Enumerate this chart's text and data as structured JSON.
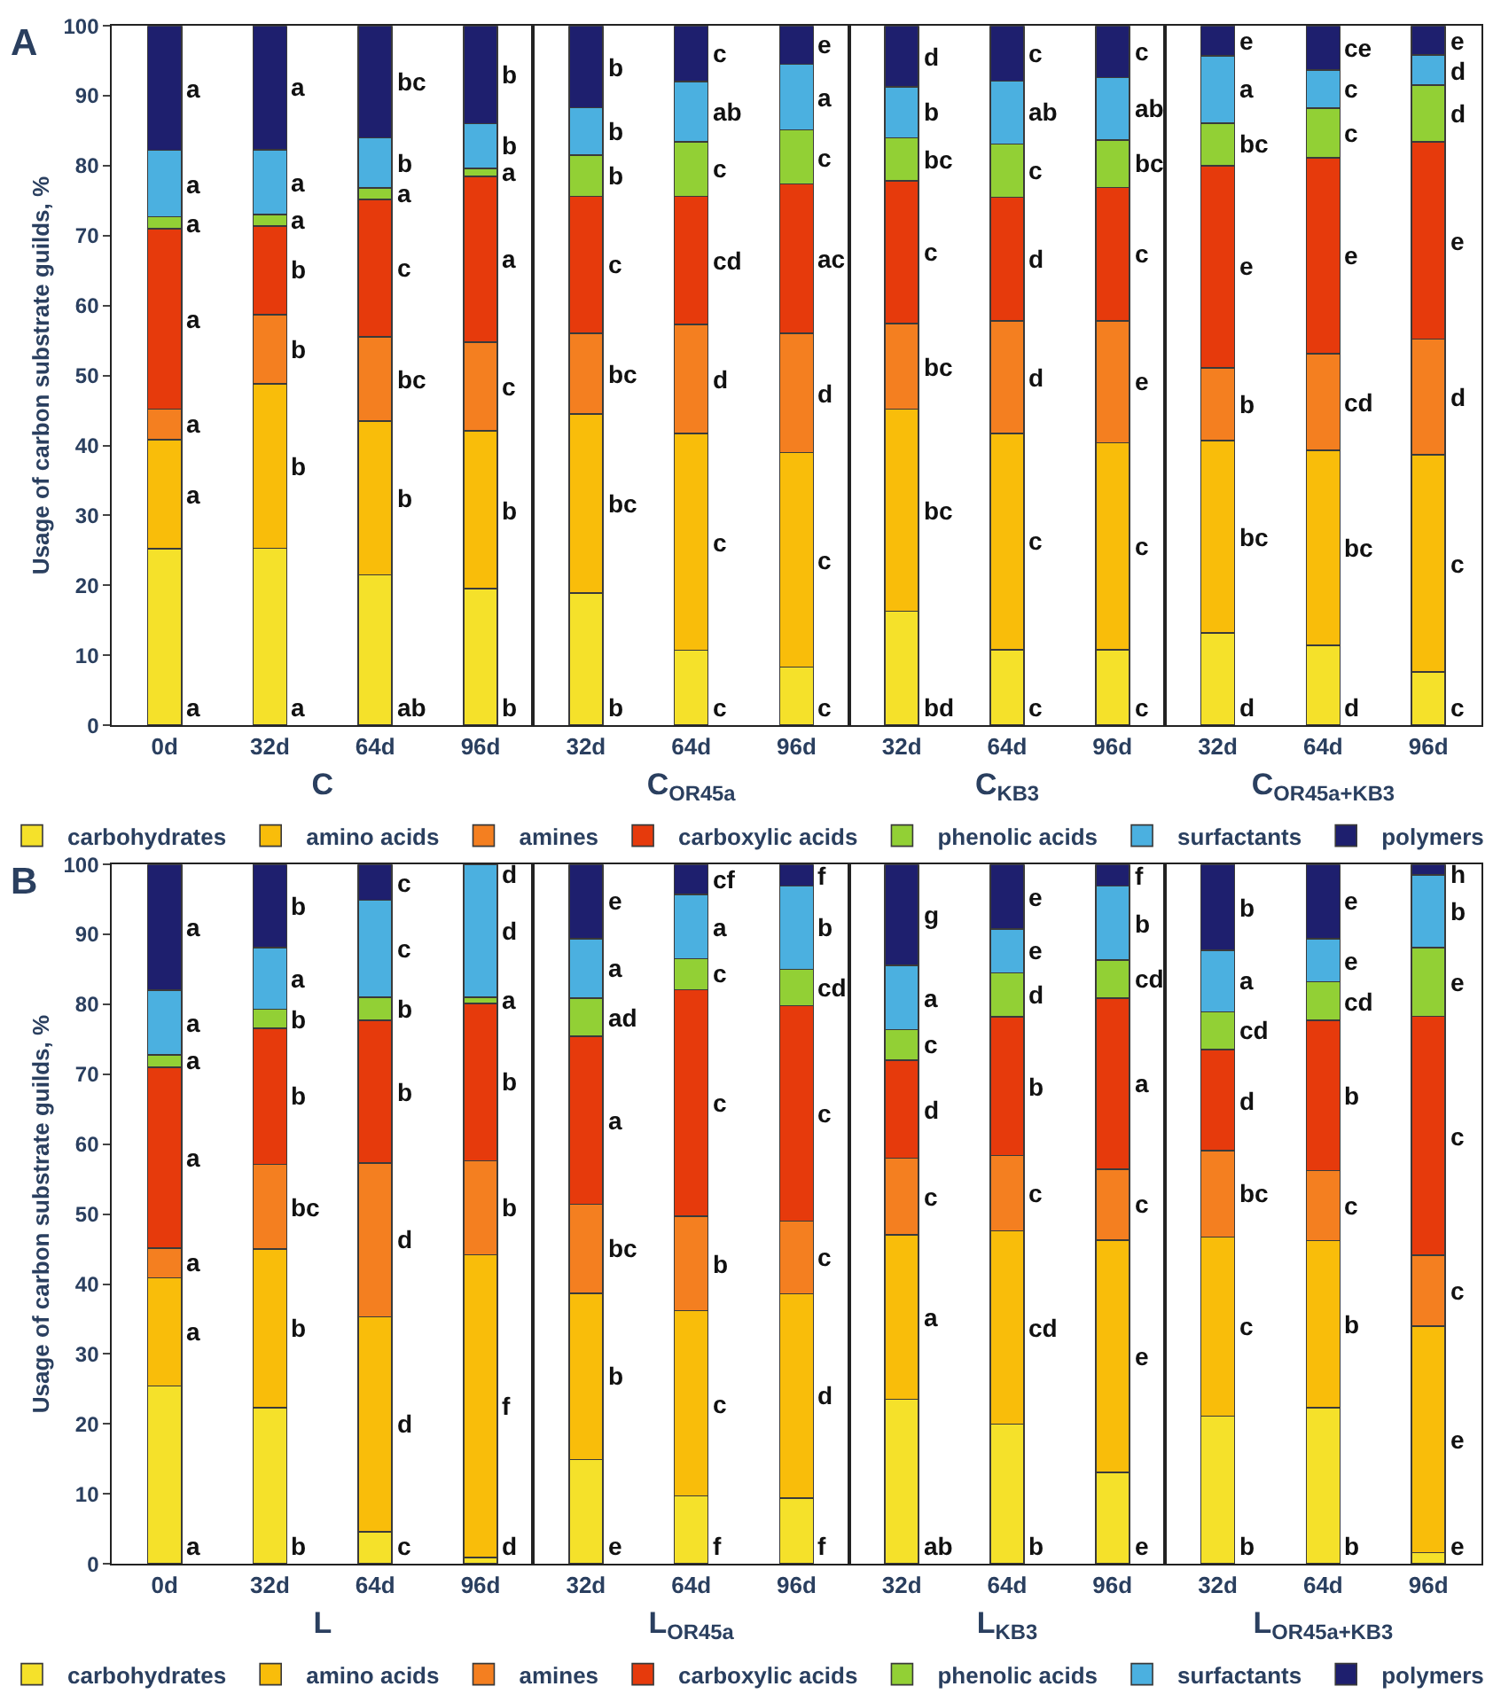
{
  "chart_data": [
    {
      "type": "bar",
      "stacked": true,
      "title": "A",
      "ylabel": "Usage of carbon substrate guilds, %",
      "xlabel": "C",
      "legend": "bottom",
      "ylim": [
        0,
        100
      ],
      "yticks": [
        0,
        10,
        20,
        30,
        40,
        50,
        60,
        70,
        80,
        90,
        100
      ],
      "categories": [
        "0d",
        "32d",
        "64d",
        "96d"
      ],
      "series": [
        {
          "name": "carbohydrates",
          "color": "#f5e12a",
          "values": [
            25.2,
            25.3,
            21.5,
            19.5
          ],
          "value_labels": [
            "a",
            "a",
            "ab",
            "b"
          ]
        },
        {
          "name": "amino acids",
          "color": "#f9bd0a",
          "values": [
            15.6,
            23.5,
            22.0,
            22.6
          ],
          "value_labels": [
            "a",
            "b",
            "b",
            "b"
          ]
        },
        {
          "name": "amines",
          "color": "#f47f20",
          "values": [
            4.4,
            9.9,
            12.0,
            12.7
          ],
          "value_labels": [
            "a",
            "b",
            "bc",
            "c"
          ]
        },
        {
          "name": "carboxylic acids",
          "color": "#e63a0c",
          "values": [
            25.8,
            12.7,
            19.7,
            23.7
          ],
          "value_labels": [
            "a",
            "b",
            "c",
            "a"
          ]
        },
        {
          "name": "phenolic acids",
          "color": "#92d035",
          "values": [
            1.7,
            1.6,
            1.6,
            1.1
          ],
          "value_labels": [
            "a",
            "a",
            "a",
            "a"
          ]
        },
        {
          "name": "surfactants",
          "color": "#4bb0e0",
          "values": [
            9.5,
            9.3,
            7.2,
            6.4
          ],
          "value_labels": [
            "a",
            "a",
            "b",
            "b"
          ]
        },
        {
          "name": "polymers",
          "color": "#1e1f6e",
          "values": [
            17.8,
            17.7,
            16.0,
            14.0
          ],
          "value_labels": [
            "a",
            "a",
            "bc",
            "b"
          ]
        }
      ]
    },
    {
      "type": "bar",
      "stacked": true,
      "xlabel": "C$_{OR45a}$",
      "tick_labels": "x",
      "ylim": [
        0,
        100
      ],
      "yticks": [
        0,
        10,
        20,
        30,
        40,
        50,
        60,
        70,
        80,
        90,
        100
      ],
      "categories": [
        "32d",
        "64d",
        "96d"
      ],
      "series": [
        {
          "color": "#f5e12a",
          "values": [
            18.9,
            10.7,
            8.3
          ],
          "value_labels": [
            "b",
            "c",
            "c"
          ]
        },
        {
          "color": "#f9bd0a",
          "values": [
            25.6,
            31.0,
            30.7
          ],
          "value_labels": [
            "bc",
            "c",
            "c"
          ]
        },
        {
          "color": "#f47f20",
          "values": [
            11.5,
            15.6,
            17.0
          ],
          "value_labels": [
            "bc",
            "d",
            "d"
          ]
        },
        {
          "color": "#e63a0c",
          "values": [
            19.6,
            18.3,
            21.4
          ],
          "value_labels": [
            "c",
            "cd",
            "ac"
          ]
        },
        {
          "color": "#92d035",
          "values": [
            5.9,
            7.8,
            7.7
          ],
          "value_labels": [
            "b",
            "c",
            "c"
          ]
        },
        {
          "color": "#4bb0e0",
          "values": [
            6.8,
            8.6,
            9.4
          ],
          "value_labels": [
            "b",
            "ab",
            "a"
          ]
        },
        {
          "color": "#1e1f6e",
          "values": [
            11.7,
            8.0,
            5.5
          ],
          "value_labels": [
            "b",
            "c",
            "e"
          ]
        }
      ]
    },
    {
      "type": "bar",
      "stacked": true,
      "xlabel": "C$_{KB3}$",
      "tick_labels": "x",
      "ylim": [
        0,
        100
      ],
      "yticks": [
        0,
        10,
        20,
        30,
        40,
        50,
        60,
        70,
        80,
        90,
        100
      ],
      "categories": [
        "32d",
        "64d",
        "96d"
      ],
      "series": [
        {
          "color": "#f5e12a",
          "values": [
            16.3,
            10.8,
            10.8
          ],
          "value_labels": [
            "bd",
            "c",
            "c"
          ]
        },
        {
          "color": "#f9bd0a",
          "values": [
            28.9,
            30.9,
            29.6
          ],
          "value_labels": [
            "bc",
            "c",
            "c"
          ]
        },
        {
          "color": "#f47f20",
          "values": [
            12.2,
            16.1,
            17.4
          ],
          "value_labels": [
            "bc",
            "d",
            "e"
          ]
        },
        {
          "color": "#e63a0c",
          "values": [
            20.4,
            17.7,
            19.1
          ],
          "value_labels": [
            "c",
            "d",
            "c"
          ]
        },
        {
          "color": "#92d035",
          "values": [
            6.2,
            7.6,
            6.8
          ],
          "value_labels": [
            "bc",
            "c",
            "bc"
          ]
        },
        {
          "color": "#4bb0e0",
          "values": [
            7.3,
            9.0,
            8.9
          ],
          "value_labels": [
            "b",
            "ab",
            "ab"
          ]
        },
        {
          "color": "#1e1f6e",
          "values": [
            8.7,
            7.9,
            7.4
          ],
          "value_labels": [
            "d",
            "c",
            "c"
          ]
        }
      ]
    },
    {
      "type": "bar",
      "stacked": true,
      "xlabel": "C$_{OR45a+KB3}$",
      "tick_labels": "x",
      "ylim": [
        0,
        100
      ],
      "yticks": [
        0,
        10,
        20,
        30,
        40,
        50,
        60,
        70,
        80,
        90,
        100
      ],
      "categories": [
        "32d",
        "64d",
        "96d"
      ],
      "series": [
        {
          "color": "#f5e12a",
          "values": [
            13.2,
            11.4,
            7.6
          ],
          "value_labels": [
            "d",
            "d",
            "c"
          ]
        },
        {
          "color": "#f9bd0a",
          "values": [
            27.5,
            27.9,
            31.1
          ],
          "value_labels": [
            "bc",
            "bc",
            "c"
          ]
        },
        {
          "color": "#f47f20",
          "values": [
            10.4,
            13.8,
            16.5
          ],
          "value_labels": [
            "b",
            "cd",
            "d"
          ]
        },
        {
          "color": "#e63a0c",
          "values": [
            28.9,
            28.0,
            28.2
          ],
          "value_labels": [
            "e",
            "e",
            "e"
          ]
        },
        {
          "color": "#92d035",
          "values": [
            6.1,
            7.1,
            8.1
          ],
          "value_labels": [
            "bc",
            "c",
            "d"
          ]
        },
        {
          "color": "#4bb0e0",
          "values": [
            9.6,
            5.5,
            4.3
          ],
          "value_labels": [
            "a",
            "c",
            "d"
          ]
        },
        {
          "color": "#1e1f6e",
          "values": [
            4.3,
            6.3,
            4.2
          ],
          "value_labels": [
            "e",
            "ce",
            "e"
          ]
        }
      ]
    },
    {
      "type": "bar",
      "stacked": true,
      "title": "B",
      "ylabel": "Usage of carbon substrate guilds, %",
      "xlabel": "L",
      "legend": "bottom",
      "ylim": [
        0,
        100
      ],
      "yticks": [
        0,
        10,
        20,
        30,
        40,
        50,
        60,
        70,
        80,
        90,
        100
      ],
      "categories": [
        "0d",
        "32d",
        "64d",
        "96d"
      ],
      "series": [
        {
          "name": "carbohydrates",
          "color": "#f5e12a",
          "values": [
            25.4,
            22.3,
            4.6,
            0.9
          ],
          "value_labels": [
            "a",
            "b",
            "c",
            "d"
          ]
        },
        {
          "name": "amino acids",
          "color": "#f9bd0a",
          "values": [
            15.5,
            22.7,
            30.7,
            43.3
          ],
          "value_labels": [
            "a",
            "b",
            "d",
            "f"
          ]
        },
        {
          "name": "amines",
          "color": "#f47f20",
          "values": [
            4.2,
            12.1,
            22.0,
            13.4
          ],
          "value_labels": [
            "a",
            "bc",
            "d",
            "b"
          ]
        },
        {
          "name": "carboxylic acids",
          "color": "#e63a0c",
          "values": [
            25.9,
            19.5,
            20.4,
            22.5
          ],
          "value_labels": [
            "a",
            "b",
            "b",
            "b"
          ]
        },
        {
          "name": "phenolic acids",
          "color": "#92d035",
          "values": [
            1.8,
            2.7,
            3.3,
            0.9
          ],
          "value_labels": [
            "a",
            "b",
            "b",
            "a"
          ]
        },
        {
          "name": "surfactants",
          "color": "#4bb0e0",
          "values": [
            9.2,
            8.8,
            13.9,
            19.0
          ],
          "value_labels": [
            "a",
            "a",
            "c",
            "d"
          ]
        },
        {
          "name": "polymers",
          "color": "#1e1f6e",
          "values": [
            18.0,
            11.9,
            5.1,
            0.3
          ],
          "value_labels": [
            "a",
            "b",
            "c",
            "d"
          ]
        }
      ]
    },
    {
      "type": "bar",
      "stacked": true,
      "xlabel": "L$_{OR45a}$",
      "tick_labels": "x",
      "ylim": [
        0,
        100
      ],
      "yticks": [
        0,
        10,
        20,
        30,
        40,
        50,
        60,
        70,
        80,
        90,
        100
      ],
      "categories": [
        "32d",
        "64d",
        "96d"
      ],
      "series": [
        {
          "color": "#f5e12a",
          "values": [
            14.9,
            9.7,
            9.4
          ],
          "value_labels": [
            "e",
            "f",
            "f"
          ]
        },
        {
          "color": "#f9bd0a",
          "values": [
            23.8,
            26.5,
            29.2
          ],
          "value_labels": [
            "b",
            "c",
            "d"
          ]
        },
        {
          "color": "#f47f20",
          "values": [
            12.7,
            13.5,
            10.4
          ],
          "value_labels": [
            "bc",
            "b",
            "c"
          ]
        },
        {
          "color": "#e63a0c",
          "values": [
            24.0,
            32.4,
            30.8
          ],
          "value_labels": [
            "a",
            "c",
            "c"
          ]
        },
        {
          "color": "#92d035",
          "values": [
            5.5,
            4.4,
            5.2
          ],
          "value_labels": [
            "ad",
            "c",
            "cd"
          ]
        },
        {
          "color": "#4bb0e0",
          "values": [
            8.5,
            9.2,
            11.9
          ],
          "value_labels": [
            "a",
            "a",
            "b"
          ]
        },
        {
          "color": "#1e1f6e",
          "values": [
            10.6,
            4.3,
            3.1
          ],
          "value_labels": [
            "e",
            "cf",
            "f"
          ]
        }
      ]
    },
    {
      "type": "bar",
      "stacked": true,
      "xlabel": "L$_{KB3}$",
      "tick_labels": "x",
      "ylim": [
        0,
        100
      ],
      "yticks": [
        0,
        10,
        20,
        30,
        40,
        50,
        60,
        70,
        80,
        90,
        100
      ],
      "categories": [
        "32d",
        "64d",
        "96d"
      ],
      "series": [
        {
          "color": "#f5e12a",
          "values": [
            23.5,
            20.0,
            13.1
          ],
          "value_labels": [
            "ab",
            "b",
            "e"
          ]
        },
        {
          "color": "#f9bd0a",
          "values": [
            23.5,
            27.6,
            33.2
          ],
          "value_labels": [
            "a",
            "cd",
            "e"
          ]
        },
        {
          "color": "#f47f20",
          "values": [
            11.0,
            10.8,
            10.1
          ],
          "value_labels": [
            "c",
            "c",
            "c"
          ]
        },
        {
          "color": "#e63a0c",
          "values": [
            14.0,
            19.8,
            24.5
          ],
          "value_labels": [
            "d",
            "b",
            "a"
          ]
        },
        {
          "color": "#92d035",
          "values": [
            4.4,
            6.3,
            5.4
          ],
          "value_labels": [
            "c",
            "d",
            "cd"
          ]
        },
        {
          "color": "#4bb0e0",
          "values": [
            9.2,
            6.3,
            10.6
          ],
          "value_labels": [
            "a",
            "e",
            "b"
          ]
        },
        {
          "color": "#1e1f6e",
          "values": [
            14.4,
            9.2,
            3.1
          ],
          "value_labels": [
            "g",
            "e",
            "f"
          ]
        }
      ]
    },
    {
      "type": "bar",
      "stacked": true,
      "xlabel": "L$_{OR45a+KB3}$",
      "tick_labels": "x",
      "ylim": [
        0,
        100
      ],
      "yticks": [
        0,
        10,
        20,
        30,
        40,
        50,
        60,
        70,
        80,
        90,
        100
      ],
      "categories": [
        "32d",
        "64d",
        "96d"
      ],
      "series": [
        {
          "color": "#f5e12a",
          "values": [
            21.1,
            22.3,
            1.6
          ],
          "value_labels": [
            "b",
            "b",
            "e"
          ]
        },
        {
          "color": "#f9bd0a",
          "values": [
            25.6,
            23.9,
            32.4
          ],
          "value_labels": [
            "c",
            "b",
            "e"
          ]
        },
        {
          "color": "#f47f20",
          "values": [
            12.4,
            10.0,
            10.1
          ],
          "value_labels": [
            "bc",
            "c",
            "c"
          ]
        },
        {
          "color": "#e63a0c",
          "values": [
            14.4,
            21.5,
            34.2
          ],
          "value_labels": [
            "d",
            "b",
            "c"
          ]
        },
        {
          "color": "#92d035",
          "values": [
            5.4,
            5.5,
            9.8
          ],
          "value_labels": [
            "cd",
            "cd",
            "e"
          ]
        },
        {
          "color": "#4bb0e0",
          "values": [
            8.8,
            6.2,
            10.4
          ],
          "value_labels": [
            "a",
            "e",
            "b"
          ]
        },
        {
          "color": "#1e1f6e",
          "values": [
            12.3,
            10.6,
            1.5
          ],
          "value_labels": [
            "b",
            "e",
            "h"
          ]
        }
      ]
    }
  ]
}
